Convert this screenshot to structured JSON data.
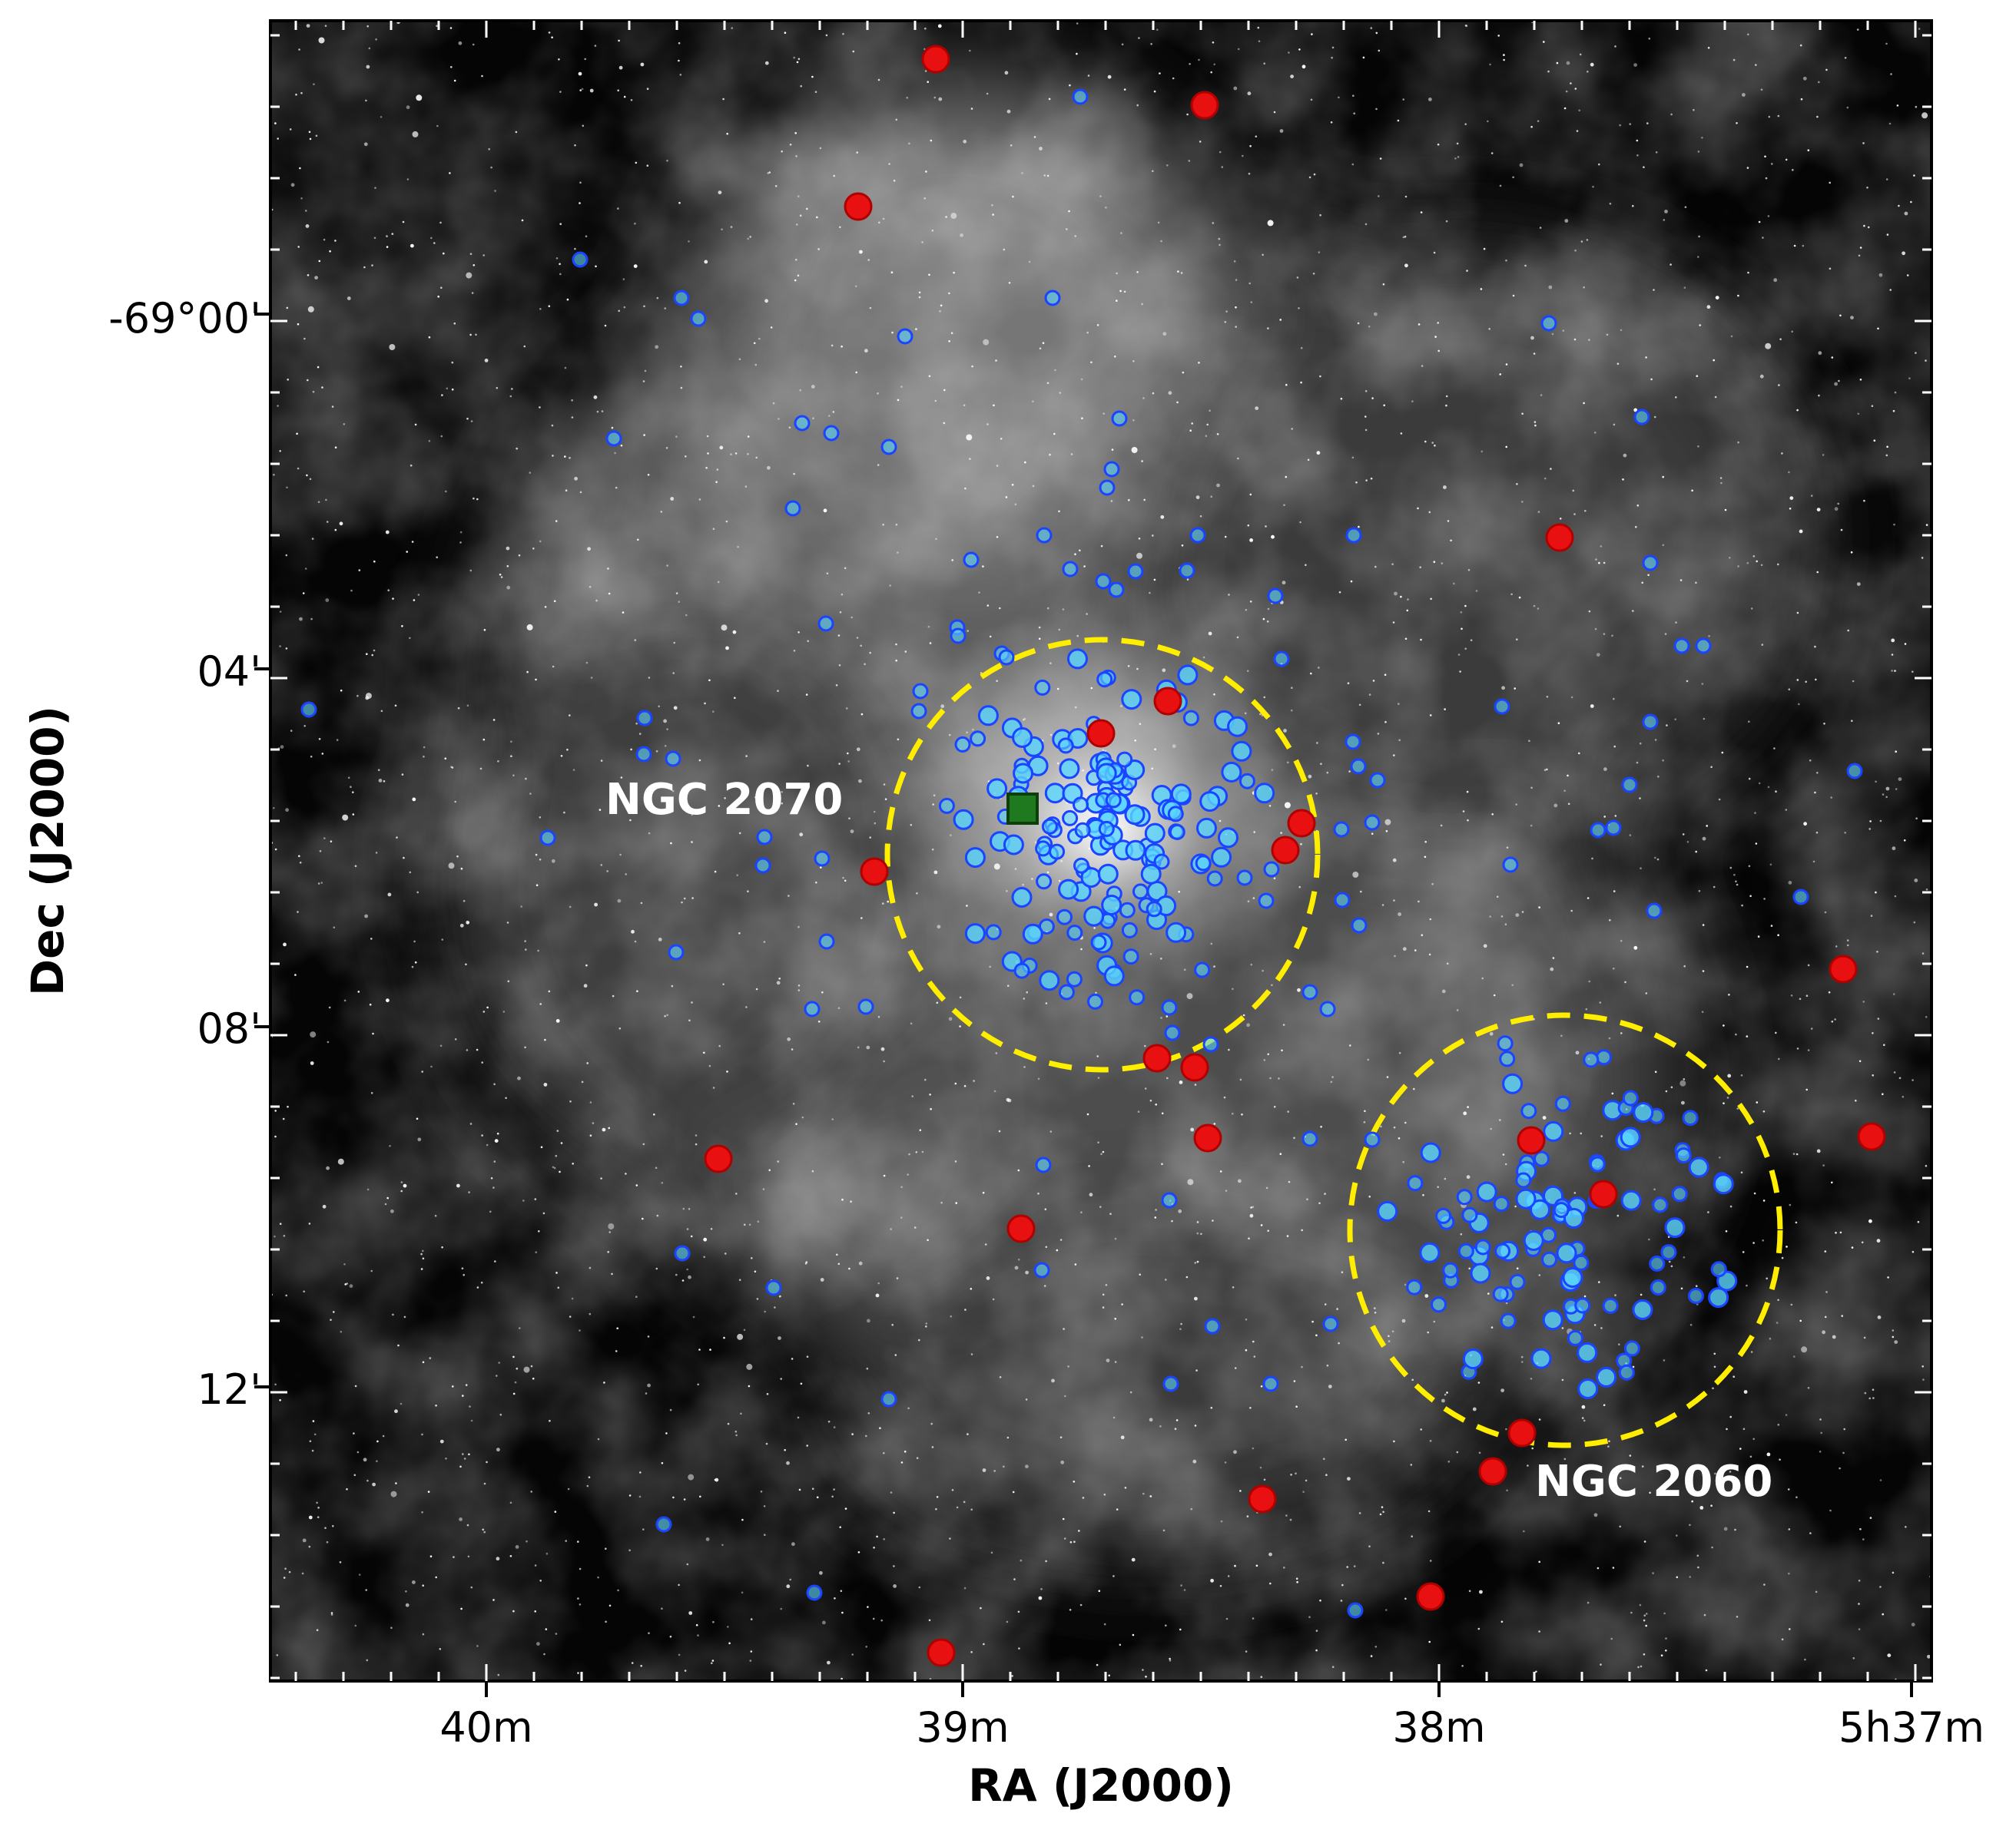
{
  "figure": {
    "x_axis_title": "RA (J2000)",
    "y_axis_title": "Dec (J2000)",
    "x_tick_labels": [
      "40m",
      "39m",
      "38m",
      "5h37m"
    ],
    "y_tick_labels": [
      "-69°00'",
      "04'",
      "08'",
      "12'"
    ],
    "annotations": [
      {
        "text": "NGC 2070"
      },
      {
        "text": "NGC 2060"
      }
    ],
    "colors": {
      "cluster_circle": "#ffee00",
      "red_marker": "#e81010",
      "blue_marker_edge": "#1a44ff",
      "blue_marker_fill": "#5ad6ff",
      "square_marker": "#1f7a1f"
    }
  }
}
